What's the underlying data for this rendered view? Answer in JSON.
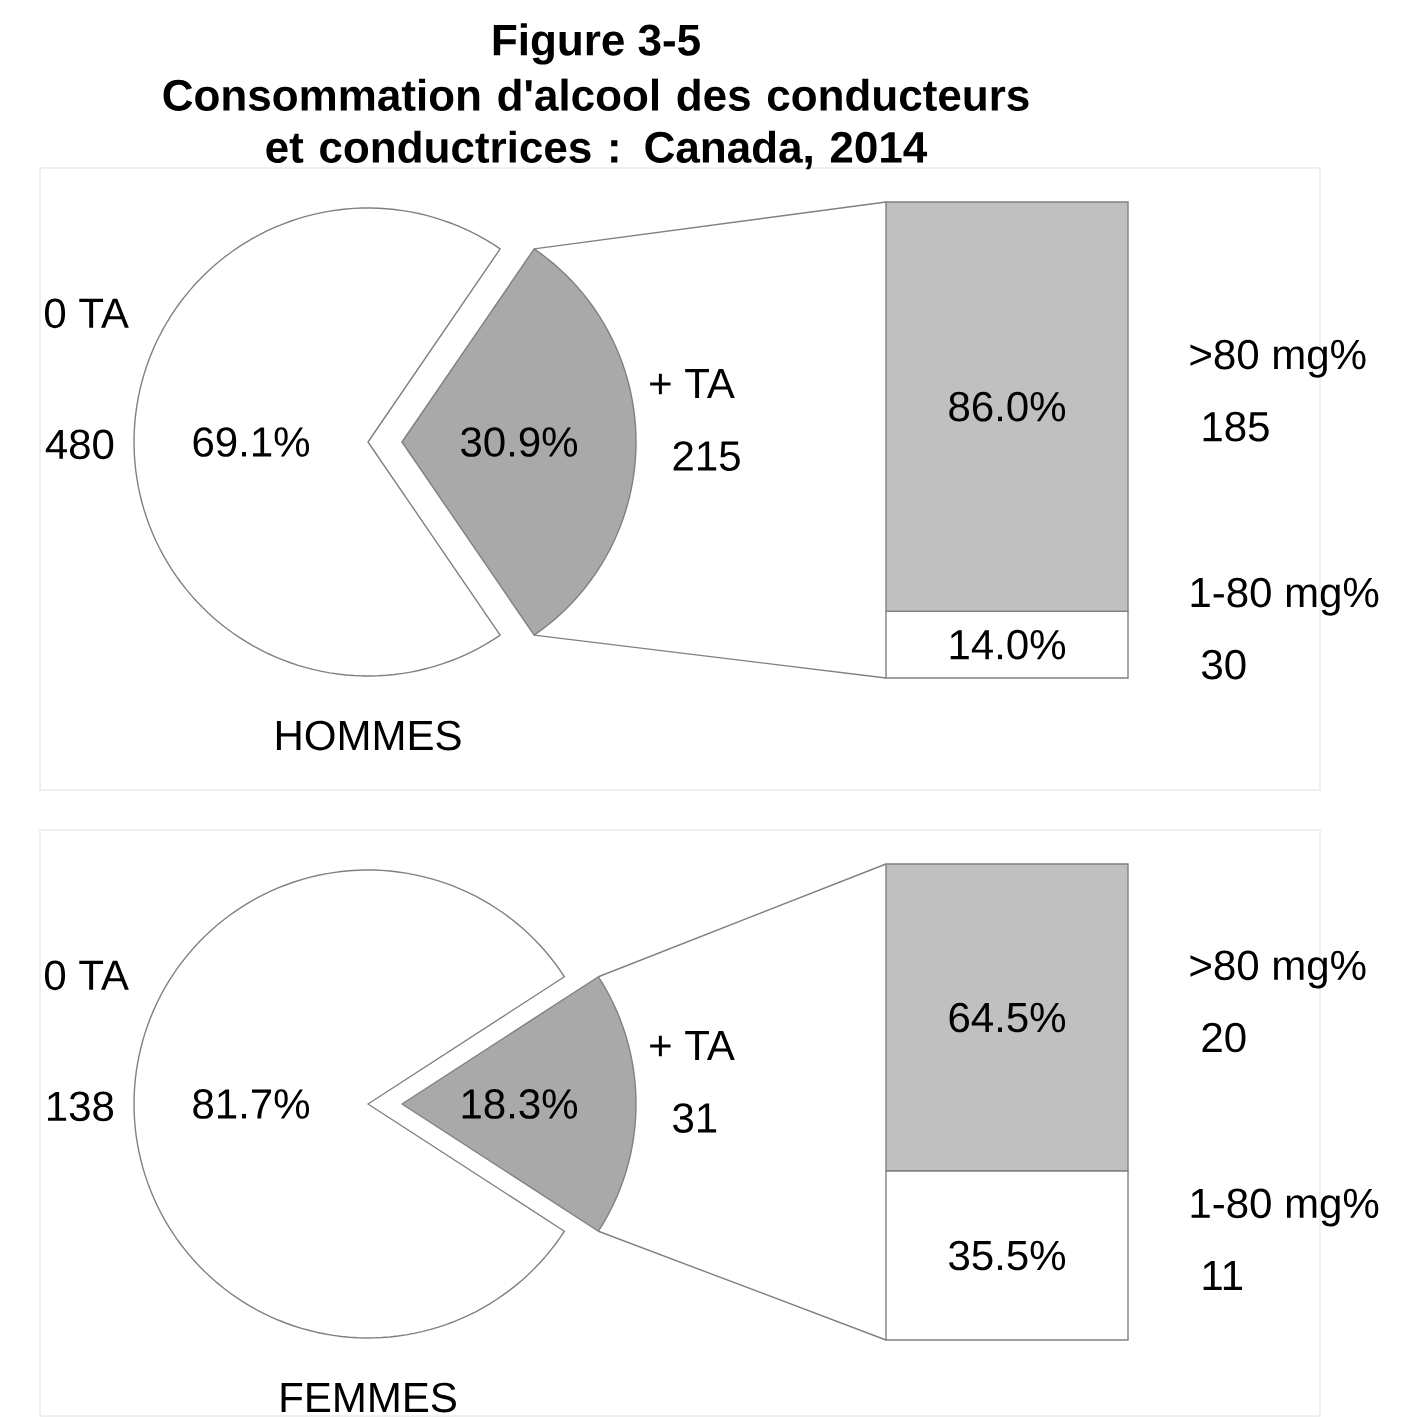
{
  "chart_data": [
    {
      "type": "pie",
      "title": "Figure 3-5",
      "subtitle": "Consommation d'alcool des conducteurs et conductrices : Canada, 2014",
      "xlabel": "HOMMES",
      "categories": [
        "0 TA",
        "+ TA"
      ],
      "values": [
        69.1,
        30.9
      ],
      "colors": [
        "#ffffff",
        "#a9a9a9"
      ],
      "value_labels": [
        "69.1%",
        "30.9%"
      ],
      "annotations": [
        "480",
        "215"
      ]
    },
    {
      "type": "bar",
      "stacked": true,
      "categories": [
        null
      ],
      "series": [
        {
          "name": "1-80 mg%",
          "color": "#ffffff",
          "values": [
            14.0
          ],
          "value_labels": [
            "14.0%"
          ]
        },
        {
          "name": ">80 mg%",
          "color": "#c0c0c0",
          "values": [
            86.0
          ],
          "value_labels": [
            "86.0%"
          ]
        }
      ],
      "annotations": [
        "30",
        "185"
      ]
    },
    {
      "type": "pie",
      "xlabel": "FEMMES",
      "categories": [
        "0 TA",
        "+ TA"
      ],
      "values": [
        81.7,
        18.3
      ],
      "colors": [
        "#ffffff",
        "#a9a9a9"
      ],
      "value_labels": [
        "81.7%",
        "18.3%"
      ],
      "annotations": [
        "138",
        "31"
      ]
    },
    {
      "type": "bar",
      "stacked": true,
      "categories": [
        null
      ],
      "series": [
        {
          "name": "1-80 mg%",
          "color": "#ffffff",
          "values": [
            35.5
          ],
          "value_labels": [
            "35.5%"
          ]
        },
        {
          "name": ">80 mg%",
          "color": "#c0c0c0",
          "values": [
            64.5
          ],
          "value_labels": [
            "64.5%"
          ]
        }
      ],
      "annotations": [
        "11",
        "20"
      ]
    }
  ]
}
